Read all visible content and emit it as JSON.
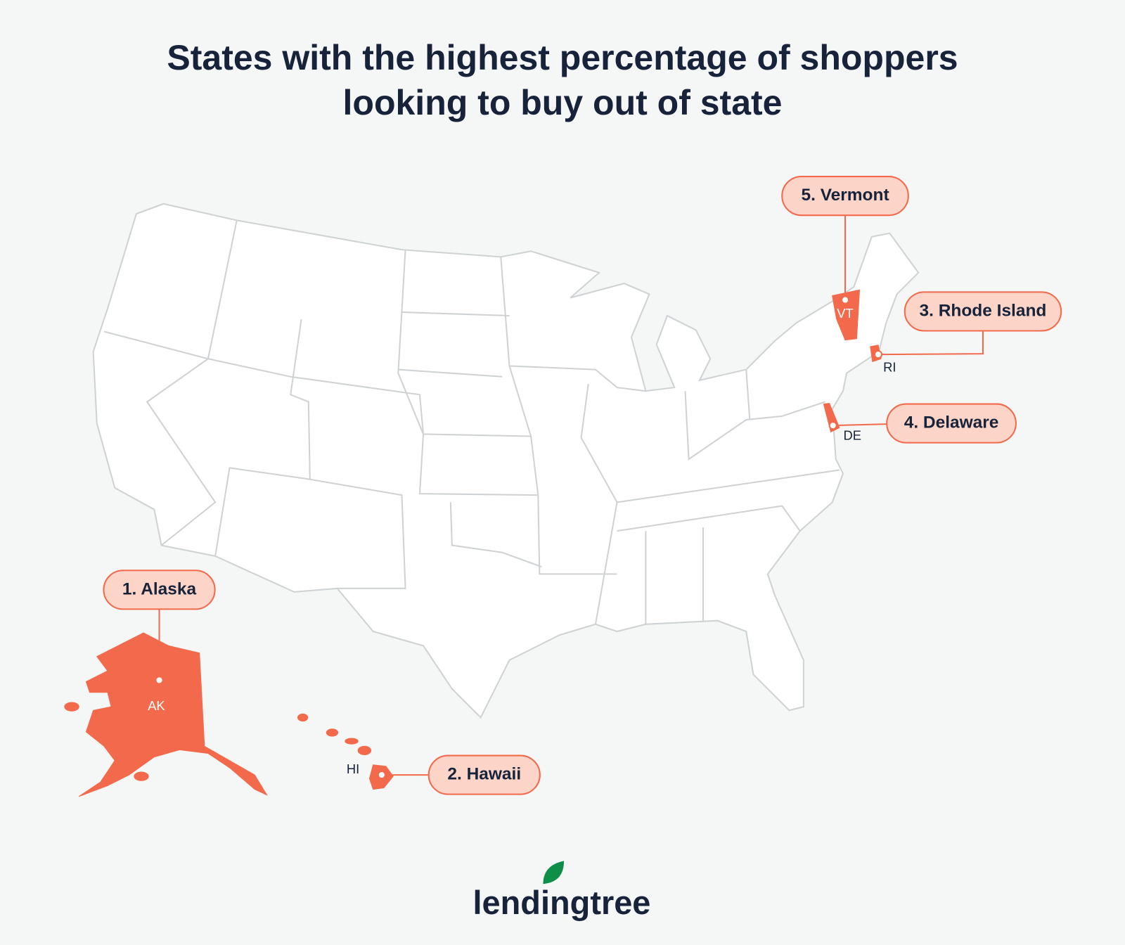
{
  "title": "States with the highest percentage of shoppers looking to buy out of state",
  "callouts": [
    {
      "label": "1. Alaska",
      "state": "AK"
    },
    {
      "label": "2. Hawaii",
      "state": "HI"
    },
    {
      "label": "3. Rhode Island",
      "state": "RI"
    },
    {
      "label": "4. Delaware",
      "state": "DE"
    },
    {
      "label": "5. Vermont",
      "state": "VT"
    }
  ],
  "logo": "lendingtree"
}
